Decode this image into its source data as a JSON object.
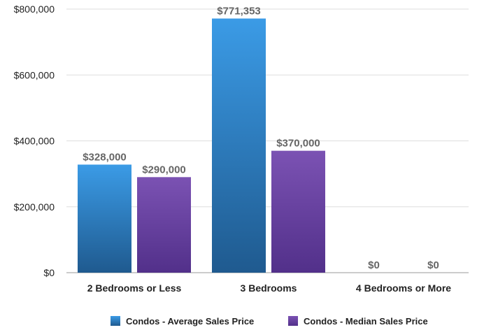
{
  "chart_data": {
    "type": "bar",
    "title": "",
    "xlabel": "",
    "ylabel": "",
    "categories": [
      "2 Bedrooms or Less",
      "3 Bedrooms",
      "4 Bedrooms or More"
    ],
    "series": [
      {
        "name": "Condos - Average Sales Price",
        "values": [
          328000,
          771353,
          0
        ],
        "labels": [
          "$328,000",
          "$771,353",
          "$0"
        ],
        "color": "#2f86d6"
      },
      {
        "name": "Condos - Median Sales Price",
        "values": [
          290000,
          370000,
          0
        ],
        "labels": [
          "$290,000",
          "$370,000",
          "$0"
        ],
        "color": "#6a3fa0"
      }
    ],
    "ylim": [
      0,
      800000
    ],
    "yticks": [
      0,
      200000,
      400000,
      600000,
      800000
    ],
    "ytick_labels": [
      "$0",
      "$200,000",
      "$400,000",
      "$600,000",
      "$800,000"
    ],
    "grid": true,
    "legend_position": "bottom"
  }
}
